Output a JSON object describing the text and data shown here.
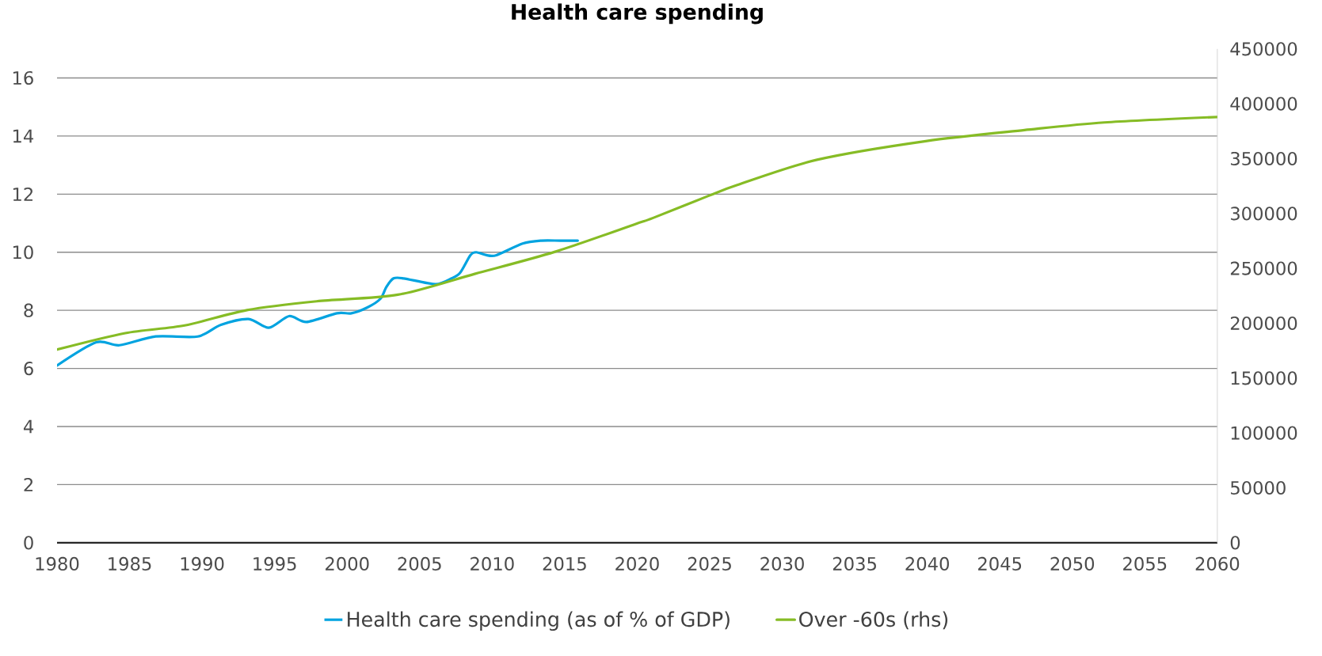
{
  "chart_data": {
    "type": "line",
    "title": "Health care spending",
    "xlim": [
      1980,
      2060
    ],
    "xticks": [
      1980,
      1985,
      1990,
      1995,
      2000,
      2005,
      2010,
      2015,
      2020,
      2025,
      2030,
      2035,
      2040,
      2045,
      2050,
      2055,
      2060
    ],
    "ylim": [
      0,
      17
    ],
    "yticks": [
      0,
      2,
      4,
      6,
      8,
      10,
      12,
      14,
      16
    ],
    "y2lim": [
      0,
      450000
    ],
    "y2ticks": [
      0,
      50000,
      100000,
      150000,
      200000,
      250000,
      300000,
      350000,
      400000,
      450000
    ],
    "grid": "y",
    "legend": "bottom",
    "marker": "none",
    "line_style": "solid",
    "series": [
      {
        "name": "Health care spending (as of % of GDP)",
        "color": "#00a3e0",
        "x": [
          1980,
          1982.7,
          1984.3,
          1986.8,
          1989.7,
          1991.3,
          1993.2,
          1994.6,
          1996.0,
          1997.2,
          1999.3,
          2000.3,
          2001.4,
          2002.3,
          2002.7,
          2003.2,
          2003.9,
          2006.1,
          2007.2,
          2007.8,
          2008.5,
          2008.9,
          2009.6,
          2010.3,
          2012.1,
          2013.4,
          2014.7,
          2015.9
        ],
        "values": [
          6.1,
          6.9,
          6.8,
          7.1,
          7.1,
          7.5,
          7.7,
          7.4,
          7.8,
          7.6,
          7.9,
          7.9,
          8.1,
          8.4,
          8.8,
          9.1,
          9.1,
          8.9,
          9.1,
          9.3,
          9.9,
          10.0,
          9.9,
          9.9,
          10.3,
          10.4,
          10.4,
          10.4
        ]
      },
      {
        "name": "Over -60s (rhs)",
        "color": "#86bc25",
        "axis": "y2",
        "x": [
          1980,
          1984.7,
          1988.8,
          1993.1,
          1997.9,
          2003.5,
          2008.8,
          2014.3,
          2019.8,
          2021.1,
          2024.9,
          2026.9,
          2032.4,
          2039.9,
          2046.7,
          2052.2,
          2060
        ],
        "values": [
          176000,
          191000,
          198000,
          212000,
          220000,
          226000,
          245000,
          265000,
          290000,
          296000,
          316000,
          326000,
          349000,
          366000,
          376000,
          383000,
          388000
        ]
      }
    ]
  }
}
